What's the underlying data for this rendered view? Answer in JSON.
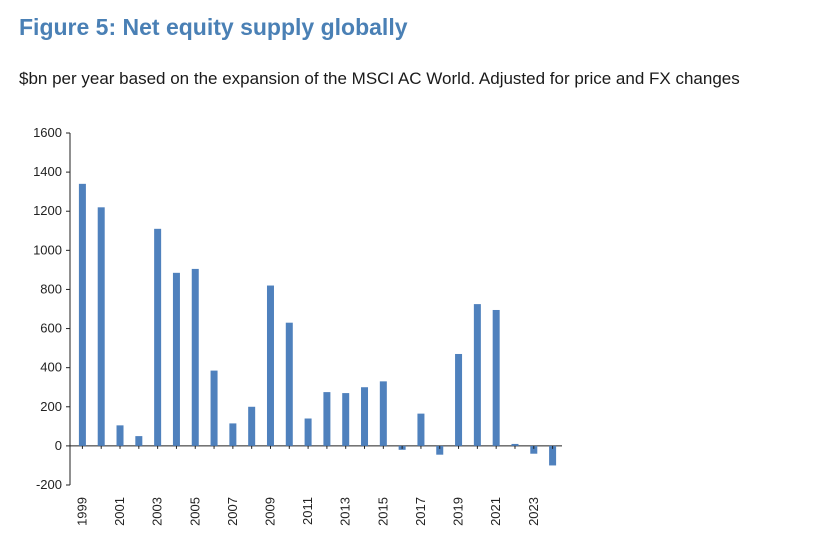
{
  "figure": {
    "title": "Figure 5: Net equity supply globally",
    "subtitle": "$bn per year based on the expansion of the MSCI AC World. Adjusted for price and FX changes"
  },
  "chart_data": {
    "type": "bar",
    "title": "Figure 5: Net equity supply globally",
    "ylabel": "$bn per year",
    "xlabel": "",
    "ylim": [
      -200,
      1600
    ],
    "yticks": [
      -200,
      0,
      200,
      400,
      600,
      800,
      1000,
      1200,
      1400,
      1600
    ],
    "categories": [
      "1999",
      "2000",
      "2001",
      "2002",
      "2003",
      "2004",
      "2005",
      "2006",
      "2007",
      "2008",
      "2009",
      "2010",
      "2011",
      "2012",
      "2013",
      "2014",
      "2015",
      "2016",
      "2017",
      "2018",
      "2019",
      "2020",
      "2021",
      "2022",
      "2023",
      "2024"
    ],
    "xtick_labels": [
      "1999",
      "2001",
      "2003",
      "2005",
      "2007",
      "2009",
      "2011",
      "2013",
      "2015",
      "2017",
      "2019",
      "2021",
      "2023"
    ],
    "values": [
      1340,
      1220,
      105,
      50,
      1110,
      885,
      905,
      385,
      115,
      200,
      820,
      630,
      140,
      275,
      270,
      300,
      330,
      -20,
      165,
      -45,
      470,
      725,
      695,
      10,
      -40,
      -100
    ],
    "color": "#4f81bd",
    "grid": false,
    "legend": "none"
  }
}
